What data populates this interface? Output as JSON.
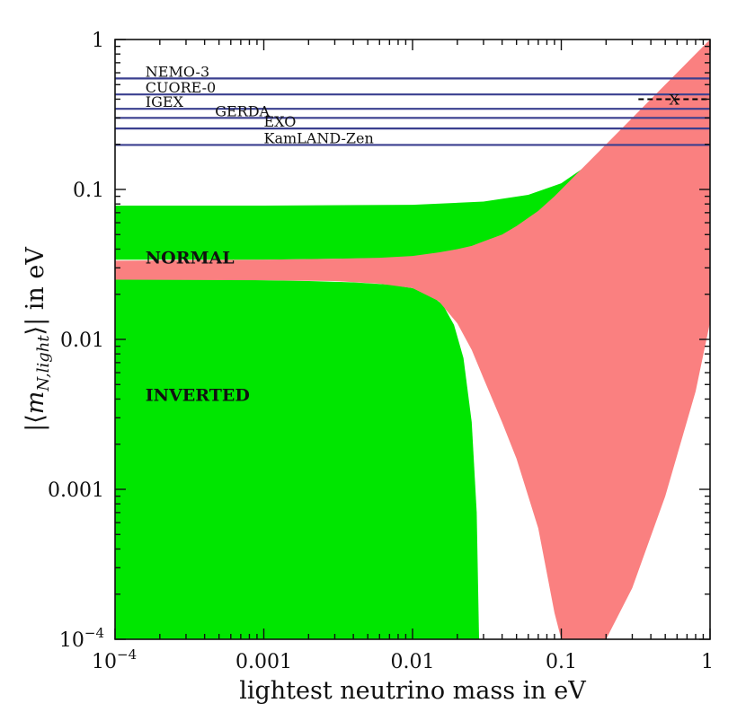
{
  "chart_data": {
    "type": "area",
    "xscale": "log",
    "yscale": "log",
    "xlim": [
      0.0001,
      1
    ],
    "ylim": [
      0.0001,
      1
    ],
    "xlabel": "lightest neutrino mass in eV",
    "ylabel_parts": {
      "pre": "|⟨",
      "m": "m",
      "sub": "N,light",
      "post": "⟩| in eV"
    },
    "xticks": [
      {
        "value": 0.0001,
        "base": "10",
        "exp": "−4"
      },
      {
        "value": 0.001,
        "label": "0.001"
      },
      {
        "value": 0.01,
        "label": "0.01"
      },
      {
        "value": 0.1,
        "label": "0.1"
      },
      {
        "value": 1,
        "label": "1"
      }
    ],
    "yticks": [
      {
        "value": 0.0001,
        "base": "10",
        "exp": "−4"
      },
      {
        "value": 0.001,
        "label": "0.001"
      },
      {
        "value": 0.01,
        "label": "0.01"
      },
      {
        "value": 0.1,
        "label": "0.1"
      },
      {
        "value": 1,
        "label": "1"
      }
    ],
    "colors": {
      "inverted": "#00e600",
      "normal": "#fa8080",
      "limits": "#3a3f8f",
      "marker": "#000000"
    },
    "regions": [
      {
        "name": "INVERTED",
        "upper_band": {
          "x": [
            0.0001,
            0.001,
            0.01,
            0.03,
            0.06,
            0.1,
            0.15,
            0.2,
            0.3,
            0.5,
            0.8,
            1
          ],
          "upper": [
            0.078,
            0.078,
            0.079,
            0.083,
            0.092,
            0.11,
            0.145,
            0.19,
            0.28,
            0.46,
            0.74,
            0.92
          ],
          "lower": [
            0.034,
            0.034,
            0.035,
            0.038,
            0.047,
            0.07,
            0.1,
            0.14,
            0.22,
            0.38,
            0.62,
            0.8
          ]
        },
        "lower_fill": {
          "x": [
            0.0001,
            0.0005,
            0.001,
            0.002,
            0.004,
            0.007,
            0.01,
            0.013,
            0.016,
            0.019,
            0.022,
            0.025,
            0.027,
            0.028
          ],
          "upper": [
            0.025,
            0.025,
            0.0248,
            0.0245,
            0.024,
            0.0232,
            0.022,
            0.02,
            0.017,
            0.0125,
            0.0075,
            0.0028,
            0.0007,
            0.0001
          ]
        }
      },
      {
        "name": "NORMAL",
        "x": [
          0.0001,
          0.001,
          0.003,
          0.006,
          0.01,
          0.015,
          0.02,
          0.025,
          0.03,
          0.04,
          0.05,
          0.07,
          0.09,
          0.1,
          0.15,
          0.2,
          0.3,
          0.5,
          0.8,
          1
        ],
        "upper": [
          0.0335,
          0.034,
          0.0345,
          0.035,
          0.036,
          0.038,
          0.04,
          0.042,
          0.045,
          0.05,
          0.057,
          0.072,
          0.09,
          0.1,
          0.15,
          0.2,
          0.3,
          0.5,
          0.8,
          1
        ],
        "lower": [
          0.025,
          0.0248,
          0.0245,
          0.0235,
          0.022,
          0.018,
          0.0128,
          0.0085,
          0.0055,
          0.0028,
          0.0016,
          0.00055,
          0.00015,
          0.0001,
          0.0001,
          0.0001,
          0.00022,
          0.0009,
          0.0045,
          0.013
        ]
      }
    ],
    "experiments": [
      {
        "name": "NEMO-3",
        "value": 0.55,
        "label_x": 0.00016
      },
      {
        "name": "CUORE-0",
        "value": 0.43,
        "label_x": 0.00016
      },
      {
        "name": "IGEX",
        "value": 0.345,
        "label_x": 0.00016
      },
      {
        "name": "GERDA",
        "value": 0.3,
        "label_x": 0.00047
      },
      {
        "name": "EXO",
        "value": 0.255,
        "label_x": 0.001
      },
      {
        "name": "KamLAND-Zen",
        "value": 0.198,
        "label_x": 0.001
      }
    ],
    "marker": {
      "label": "X",
      "value": 0.4,
      "x_range": [
        0.33,
        1
      ]
    },
    "annotations": [
      {
        "text": "NORMAL",
        "x": 0.00016,
        "y": 0.032
      },
      {
        "text": "INVERTED",
        "x": 0.00016,
        "y": 0.0039
      }
    ]
  }
}
